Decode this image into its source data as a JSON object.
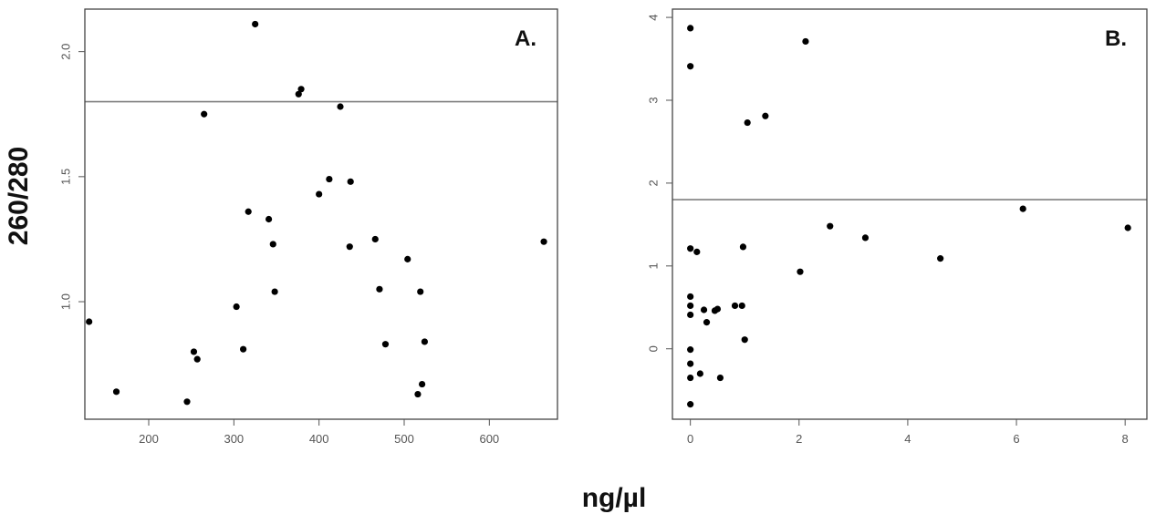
{
  "figure": {
    "shared_xlabel": "ng/µl",
    "shared_ylabel": "260/280"
  },
  "chart_data": [
    {
      "type": "scatter",
      "panel_label": "A.",
      "xlabel": "",
      "ylabel": "",
      "xlim": [
        125,
        680
      ],
      "ylim": [
        0.53,
        2.17
      ],
      "xticks": [
        200,
        300,
        400,
        500,
        600
      ],
      "yticks": [
        1.0,
        1.5,
        2.0
      ],
      "ytick_labels": [
        "1.0",
        "1.5",
        "2.0"
      ],
      "hline": 1.8,
      "grid": false,
      "colors": {
        "points": "#000000",
        "reference_line": "#7f7f7f",
        "frame": "#444444"
      },
      "points": [
        {
          "x": 130,
          "y": 0.92
        },
        {
          "x": 162,
          "y": 0.64
        },
        {
          "x": 245,
          "y": 0.6
        },
        {
          "x": 253,
          "y": 0.8
        },
        {
          "x": 257,
          "y": 0.77
        },
        {
          "x": 265,
          "y": 1.75
        },
        {
          "x": 303,
          "y": 0.98
        },
        {
          "x": 311,
          "y": 0.81
        },
        {
          "x": 317,
          "y": 1.36
        },
        {
          "x": 325,
          "y": 2.11
        },
        {
          "x": 341,
          "y": 1.33
        },
        {
          "x": 346,
          "y": 1.23
        },
        {
          "x": 348,
          "y": 1.04
        },
        {
          "x": 376,
          "y": 1.83
        },
        {
          "x": 379,
          "y": 1.85
        },
        {
          "x": 400,
          "y": 1.43
        },
        {
          "x": 412,
          "y": 1.49
        },
        {
          "x": 425,
          "y": 1.78
        },
        {
          "x": 436,
          "y": 1.22
        },
        {
          "x": 437,
          "y": 1.48
        },
        {
          "x": 466,
          "y": 1.25
        },
        {
          "x": 471,
          "y": 1.05
        },
        {
          "x": 478,
          "y": 0.83
        },
        {
          "x": 504,
          "y": 1.17
        },
        {
          "x": 516,
          "y": 0.63
        },
        {
          "x": 519,
          "y": 1.04
        },
        {
          "x": 521,
          "y": 0.67
        },
        {
          "x": 524,
          "y": 0.84
        },
        {
          "x": 664,
          "y": 1.24
        }
      ]
    },
    {
      "type": "scatter",
      "panel_label": "B.",
      "xlabel": "",
      "ylabel": "",
      "xlim": [
        -0.33,
        8.4
      ],
      "ylim": [
        -0.85,
        4.1
      ],
      "xticks": [
        0,
        2,
        4,
        6,
        8
      ],
      "yticks": [
        0,
        1,
        2,
        3,
        4
      ],
      "ytick_labels": [
        "0",
        "1",
        "2",
        "3",
        "4"
      ],
      "hline": 1.8,
      "grid": false,
      "colors": {
        "points": "#000000",
        "reference_line": "#7f7f7f",
        "frame": "#444444"
      },
      "points": [
        {
          "x": 0.0,
          "y": 3.87
        },
        {
          "x": 0.0,
          "y": 3.41
        },
        {
          "x": 0.0,
          "y": 1.21
        },
        {
          "x": 0.0,
          "y": 0.63
        },
        {
          "x": 0.0,
          "y": 0.52
        },
        {
          "x": 0.0,
          "y": 0.41
        },
        {
          "x": 0.0,
          "y": -0.01
        },
        {
          "x": 0.0,
          "y": -0.18
        },
        {
          "x": 0.0,
          "y": -0.35
        },
        {
          "x": 0.0,
          "y": -0.67
        },
        {
          "x": 0.12,
          "y": 1.17
        },
        {
          "x": 0.18,
          "y": -0.3
        },
        {
          "x": 0.25,
          "y": 0.47
        },
        {
          "x": 0.3,
          "y": 0.32
        },
        {
          "x": 0.45,
          "y": 0.46
        },
        {
          "x": 0.5,
          "y": 0.48
        },
        {
          "x": 0.55,
          "y": -0.35
        },
        {
          "x": 0.82,
          "y": 0.52
        },
        {
          "x": 0.95,
          "y": 0.52
        },
        {
          "x": 0.97,
          "y": 1.23
        },
        {
          "x": 1.0,
          "y": 0.11
        },
        {
          "x": 1.05,
          "y": 2.73
        },
        {
          "x": 1.38,
          "y": 2.81
        },
        {
          "x": 2.02,
          "y": 0.93
        },
        {
          "x": 2.12,
          "y": 3.71
        },
        {
          "x": 2.57,
          "y": 1.48
        },
        {
          "x": 3.22,
          "y": 1.34
        },
        {
          "x": 4.6,
          "y": 1.09
        },
        {
          "x": 6.12,
          "y": 1.69
        },
        {
          "x": 8.05,
          "y": 1.46
        }
      ]
    }
  ]
}
